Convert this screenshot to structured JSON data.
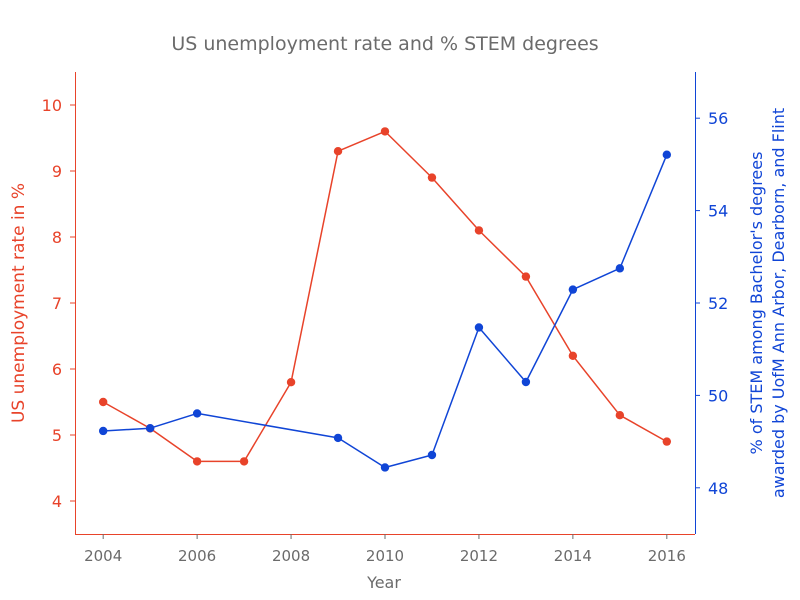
{
  "chart_data": {
    "type": "line",
    "title": "US unemployment rate and % STEM degrees",
    "xlabel": "Year",
    "ylabel_left": "US unemployment rate in %",
    "ylabel_right": [
      "% of STEM among Bachelor's degrees",
      "awarded by UofM Ann Arbor, Dearborn, and Flint"
    ],
    "xlim": [
      2003.4,
      2016.6
    ],
    "xticks": [
      2004,
      2006,
      2008,
      2010,
      2012,
      2014,
      2016
    ],
    "ylim_left": [
      3.5,
      10.5
    ],
    "yticks_left": [
      4,
      5,
      6,
      7,
      8,
      9,
      10
    ],
    "ylim_right": [
      47,
      57
    ],
    "yticks_right": [
      48,
      50,
      52,
      54,
      56
    ],
    "grid": false,
    "series": [
      {
        "axis": "left",
        "color": "#e8432a",
        "x": [
          2004,
          2005,
          2006,
          2007,
          2008,
          2009,
          2010,
          2011,
          2012,
          2013,
          2014,
          2015,
          2016
        ],
        "y": [
          5.5,
          5.1,
          4.6,
          4.6,
          5.8,
          9.3,
          9.6,
          8.9,
          8.1,
          7.4,
          6.2,
          5.3,
          4.9
        ]
      },
      {
        "axis": "right",
        "color": "#1045d6",
        "x": [
          2004,
          2005,
          2006,
          2009,
          2010,
          2011,
          2012,
          2013,
          2014,
          2015,
          2016
        ],
        "y": [
          49.23,
          49.29,
          49.61,
          49.08,
          48.44,
          48.71,
          51.47,
          50.29,
          52.29,
          52.75,
          55.21
        ]
      }
    ]
  }
}
